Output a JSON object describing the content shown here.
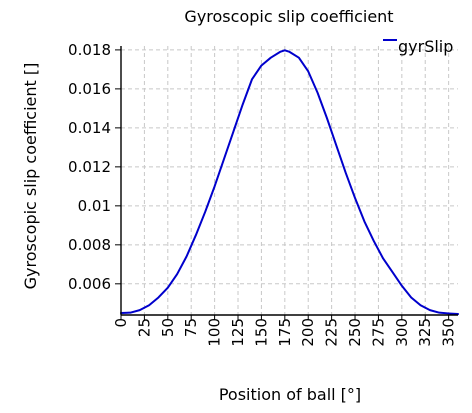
{
  "chart_data": {
    "type": "line",
    "title": "Gyroscopic slip coefficient",
    "xlabel": "Position of ball [°]",
    "ylabel": "Gyroscopic slip coefficient []",
    "xlim": [
      0,
      360
    ],
    "ylim": [
      0.0044,
      0.0182
    ],
    "grid": true,
    "legend_position": "top-right",
    "x_ticks": [
      "0",
      "25",
      "50",
      "75",
      "100",
      "125",
      "150",
      "175",
      "200",
      "225",
      "250",
      "275",
      "300",
      "325",
      "350"
    ],
    "y_ticks": [
      "0.006",
      "0.008",
      "0.01",
      "0.012",
      "0.014",
      "0.016",
      "0.018"
    ],
    "series": [
      {
        "name": "gyrSlip",
        "color": "#0000cc",
        "x": [
          0,
          10,
          20,
          30,
          40,
          50,
          60,
          70,
          80,
          90,
          100,
          110,
          120,
          130,
          140,
          150,
          160,
          170,
          175,
          180,
          190,
          200,
          210,
          220,
          230,
          240,
          250,
          260,
          270,
          280,
          290,
          300,
          310,
          320,
          330,
          340,
          350,
          360
        ],
        "y": [
          0.0045,
          0.00452,
          0.00465,
          0.0049,
          0.0053,
          0.0058,
          0.0065,
          0.0074,
          0.0085,
          0.0097,
          0.011,
          0.0124,
          0.0138,
          0.0152,
          0.0165,
          0.0172,
          0.0176,
          0.0179,
          0.01798,
          0.0179,
          0.0176,
          0.0169,
          0.0158,
          0.0145,
          0.0131,
          0.0117,
          0.0104,
          0.0092,
          0.0082,
          0.0073,
          0.0066,
          0.0059,
          0.0053,
          0.0049,
          0.00465,
          0.00452,
          0.00448,
          0.00445
        ]
      }
    ]
  }
}
